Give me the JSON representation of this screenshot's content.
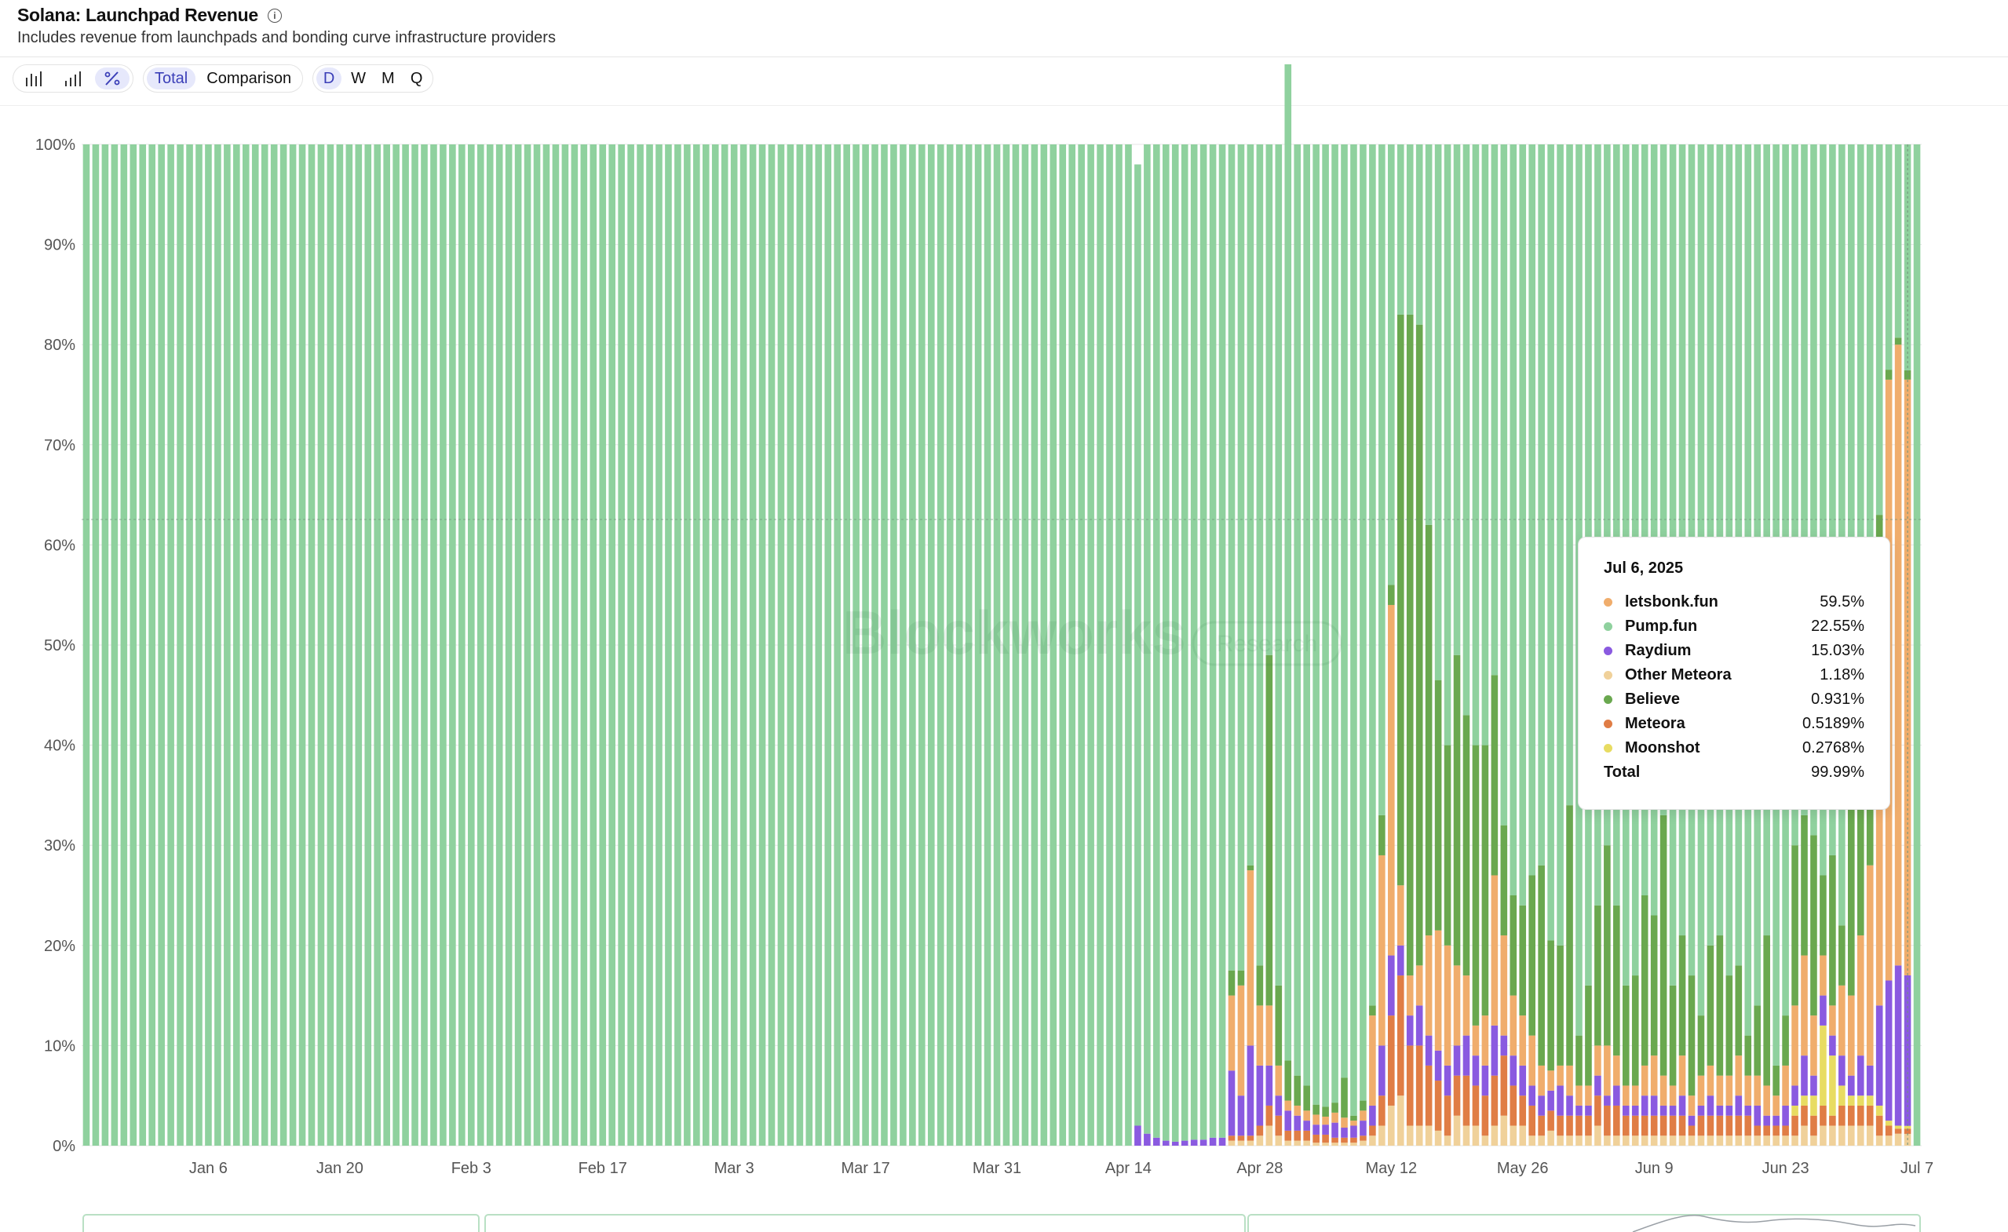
{
  "header": {
    "title": "Solana: Launchpad Revenue",
    "subtitle": "Includes revenue from launchpads and bonding curve infrastructure providers"
  },
  "toolbar": {
    "chart_types": [
      {
        "icon": "bar-chart-icon"
      },
      {
        "icon": "stacked-bar-chart-icon"
      },
      {
        "icon": "percent-icon"
      }
    ],
    "mode": {
      "total_label": "Total",
      "comparison_label": "Comparison",
      "active": "Total"
    },
    "intervals": [
      "D",
      "W",
      "M",
      "Q"
    ],
    "active_interval": "D"
  },
  "watermark": {
    "brand": "Blockworks",
    "tag": "Research"
  },
  "tooltip": {
    "date": "Jul 6, 2025",
    "rows": [
      {
        "name": "letsbonk.fun",
        "value": "59.5%",
        "color": "#f0ad6c"
      },
      {
        "name": "Pump.fun",
        "value": "22.55%",
        "color": "#8fd19e"
      },
      {
        "name": "Raydium",
        "value": "15.03%",
        "color": "#8a5ae0"
      },
      {
        "name": "Other Meteora",
        "value": "1.18%",
        "color": "#f0d19a"
      },
      {
        "name": "Believe",
        "value": "0.931%",
        "color": "#6aa84f"
      },
      {
        "name": "Meteora",
        "value": "0.5189%",
        "color": "#e07d45"
      },
      {
        "name": "Moonshot",
        "value": "0.2768%",
        "color": "#e8dc62"
      }
    ],
    "total_label": "Total",
    "total_value": "99.99%"
  },
  "chart_data": {
    "type": "bar",
    "stacked": true,
    "normalized_percent": true,
    "x_start_date": "2024-12-24",
    "num_days": 196,
    "x_ticks": [
      "Jan 6",
      "Jan 20",
      "Feb 3",
      "Feb 17",
      "Mar 3",
      "Mar 17",
      "Mar 31",
      "Apr 14",
      "Apr 28",
      "May 12",
      "May 26",
      "Jun 9",
      "Jun 23",
      "Jul 7"
    ],
    "y_ticks": [
      "0%",
      "10%",
      "20%",
      "30%",
      "40%",
      "50%",
      "60%",
      "70%",
      "80%",
      "90%",
      "100%"
    ],
    "ylim": [
      0,
      100
    ],
    "grid": true,
    "series_order": [
      "Other Meteora",
      "Meteora",
      "Moonshot",
      "Raydium",
      "letsbonk.fun",
      "Believe",
      "Pump.fun"
    ],
    "colors": {
      "Other Meteora": "#f0d19a",
      "Meteora": "#e07d45",
      "Moonshot": "#e8dc62",
      "Raydium": "#8a5ae0",
      "letsbonk.fun": "#f0ad6c",
      "Believe": "#6aa84f",
      "Pump.fun": "#8fd19e"
    },
    "days": [
      {
        "date": "2025-04-15",
        "Raydium": 2
      },
      {
        "date": "2025-04-16",
        "Raydium": 1.2
      },
      {
        "date": "2025-04-17",
        "Raydium": 0.8
      },
      {
        "date": "2025-04-18",
        "Raydium": 0.5
      },
      {
        "date": "2025-04-19",
        "Raydium": 0.4
      },
      {
        "date": "2025-04-20",
        "Raydium": 0.5
      },
      {
        "date": "2025-04-21",
        "Raydium": 0.6
      },
      {
        "date": "2025-04-22",
        "Raydium": 0.6
      },
      {
        "date": "2025-04-23",
        "Raydium": 0.8
      },
      {
        "date": "2025-04-24",
        "Raydium": 0.8
      },
      {
        "date": "2025-04-25",
        "Other Meteora": 0.5,
        "Meteora": 0.5,
        "Raydium": 6.5,
        "letsbonk.fun": 7.5,
        "Believe": 2.5
      },
      {
        "date": "2025-04-26",
        "Other Meteora": 0.5,
        "Meteora": 0.5,
        "Raydium": 4,
        "letsbonk.fun": 11,
        "Believe": 1.5
      },
      {
        "date": "2025-04-27",
        "Other Meteora": 0.5,
        "Meteora": 0.5,
        "Raydium": 9,
        "letsbonk.fun": 17.5,
        "Believe": 0.5
      },
      {
        "date": "2025-04-28",
        "Other Meteora": 1,
        "Meteora": 1,
        "Raydium": 6,
        "letsbonk.fun": 6,
        "Believe": 4
      },
      {
        "date": "2025-04-29",
        "Other Meteora": 2,
        "Meteora": 2,
        "Raydium": 4,
        "letsbonk.fun": 6,
        "Believe": 35
      },
      {
        "date": "2025-04-30",
        "Other Meteora": 1,
        "Meteora": 2,
        "Raydium": 2,
        "letsbonk.fun": 3,
        "Believe": 8
      },
      {
        "date": "2025-05-01",
        "Other Meteora": 0.5,
        "Meteora": 1,
        "Raydium": 2,
        "letsbonk.fun": 1,
        "Believe": 4
      },
      {
        "date": "2025-05-02",
        "Other Meteora": 0.5,
        "Meteora": 1,
        "Raydium": 1.5,
        "letsbonk.fun": 1,
        "Believe": 3
      },
      {
        "date": "2025-05-03",
        "Other Meteora": 0.5,
        "Meteora": 1,
        "Raydium": 1,
        "letsbonk.fun": 1,
        "Believe": 2.5
      },
      {
        "date": "2025-05-04",
        "Other Meteora": 0.3,
        "Meteora": 0.8,
        "Raydium": 1,
        "letsbonk.fun": 1,
        "Believe": 1
      },
      {
        "date": "2025-05-05",
        "Other Meteora": 0.3,
        "Meteora": 0.8,
        "Raydium": 1,
        "letsbonk.fun": 0.8,
        "Believe": 1
      },
      {
        "date": "2025-05-06",
        "Other Meteora": 0.3,
        "Meteora": 0.5,
        "Raydium": 1.5,
        "letsbonk.fun": 1,
        "Believe": 1
      },
      {
        "date": "2025-05-07",
        "Other Meteora": 0.3,
        "Meteora": 0.5,
        "Raydium": 1,
        "letsbonk.fun": 1,
        "Believe": 4
      },
      {
        "date": "2025-05-08",
        "Other Meteora": 0.3,
        "Meteora": 0.5,
        "Raydium": 1.2,
        "letsbonk.fun": 0.5,
        "Believe": 0.5
      },
      {
        "date": "2025-05-09",
        "Other Meteora": 0.5,
        "Meteora": 0.5,
        "Raydium": 1.5,
        "letsbonk.fun": 1,
        "Believe": 1
      },
      {
        "date": "2025-05-10",
        "Other Meteora": 1,
        "Meteora": 1,
        "Raydium": 2,
        "letsbonk.fun": 9,
        "Believe": 1
      },
      {
        "date": "2025-05-11",
        "Other Meteora": 2,
        "Meteora": 3,
        "Raydium": 5,
        "letsbonk.fun": 19,
        "Believe": 4
      },
      {
        "date": "2025-05-12",
        "Other Meteora": 4,
        "Meteora": 9,
        "Raydium": 6,
        "letsbonk.fun": 35,
        "Believe": 2
      },
      {
        "date": "2025-05-13",
        "Other Meteora": 5,
        "Meteora": 12,
        "Raydium": 3,
        "letsbonk.fun": 6,
        "Believe": 57
      },
      {
        "date": "2025-05-14",
        "Other Meteora": 2,
        "Meteora": 8,
        "Raydium": 3,
        "letsbonk.fun": 4,
        "Believe": 66
      },
      {
        "date": "2025-05-15",
        "Other Meteora": 2,
        "Meteora": 8,
        "Raydium": 4,
        "letsbonk.fun": 4,
        "Believe": 64
      },
      {
        "date": "2025-05-16",
        "Other Meteora": 2,
        "Meteora": 6,
        "Raydium": 3,
        "letsbonk.fun": 10,
        "Believe": 41
      },
      {
        "date": "2025-05-17",
        "Other Meteora": 1.5,
        "Meteora": 5,
        "Raydium": 3,
        "letsbonk.fun": 12,
        "Believe": 25
      },
      {
        "date": "2025-05-18",
        "Other Meteora": 1,
        "Meteora": 4,
        "Raydium": 3,
        "letsbonk.fun": 12,
        "Believe": 20
      },
      {
        "date": "2025-05-19",
        "Other Meteora": 3,
        "Meteora": 4,
        "Raydium": 3,
        "letsbonk.fun": 8,
        "Believe": 31
      },
      {
        "date": "2025-05-20",
        "Other Meteora": 2,
        "Meteora": 5,
        "Raydium": 4,
        "letsbonk.fun": 6,
        "Believe": 26
      },
      {
        "date": "2025-05-21",
        "Other Meteora": 2,
        "Meteora": 4,
        "Raydium": 3,
        "letsbonk.fun": 3,
        "Believe": 28
      },
      {
        "date": "2025-05-22",
        "Other Meteora": 1,
        "Meteora": 4,
        "Raydium": 3,
        "letsbonk.fun": 5,
        "Believe": 27
      },
      {
        "date": "2025-05-23",
        "Other Meteora": 2,
        "Meteora": 5,
        "Raydium": 5,
        "letsbonk.fun": 15,
        "Believe": 20
      },
      {
        "date": "2025-05-24",
        "Other Meteora": 3,
        "Meteora": 6,
        "Raydium": 2,
        "letsbonk.fun": 10,
        "Believe": 11
      },
      {
        "date": "2025-05-25",
        "Other Meteora": 2,
        "Meteora": 4,
        "Raydium": 3,
        "letsbonk.fun": 6,
        "Believe": 10
      },
      {
        "date": "2025-05-26",
        "Other Meteora": 2,
        "Meteora": 3,
        "Raydium": 3,
        "letsbonk.fun": 5,
        "Believe": 11
      },
      {
        "date": "2025-05-27",
        "Other Meteora": 1,
        "Meteora": 3,
        "Raydium": 2,
        "letsbonk.fun": 5,
        "Believe": 16
      },
      {
        "date": "2025-05-28",
        "Other Meteora": 1,
        "Meteora": 2,
        "Raydium": 2,
        "letsbonk.fun": 3,
        "Believe": 20
      },
      {
        "date": "2025-05-29",
        "Other Meteora": 1.5,
        "Meteora": 2,
        "Raydium": 2,
        "letsbonk.fun": 2,
        "Believe": 13
      },
      {
        "date": "2025-05-30",
        "Other Meteora": 1,
        "Meteora": 2,
        "Raydium": 3,
        "letsbonk.fun": 2,
        "Believe": 12
      },
      {
        "date": "2025-05-31",
        "Other Meteora": 1,
        "Meteora": 2,
        "Raydium": 2,
        "letsbonk.fun": 3,
        "Believe": 26
      },
      {
        "date": "2025-06-01",
        "Other Meteora": 1,
        "Meteora": 2,
        "Raydium": 1,
        "letsbonk.fun": 2,
        "Believe": 5
      },
      {
        "date": "2025-06-02",
        "Other Meteora": 1,
        "Meteora": 2,
        "Raydium": 1,
        "letsbonk.fun": 2,
        "Believe": 10
      },
      {
        "date": "2025-06-03",
        "Other Meteora": 2,
        "Meteora": 3,
        "Raydium": 2,
        "letsbonk.fun": 3,
        "Believe": 14
      },
      {
        "date": "2025-06-04",
        "Other Meteora": 1,
        "Meteora": 3,
        "Raydium": 1,
        "letsbonk.fun": 5,
        "Believe": 20
      },
      {
        "date": "2025-06-05",
        "Other Meteora": 1,
        "Meteora": 3,
        "Raydium": 2,
        "letsbonk.fun": 3,
        "Believe": 15
      },
      {
        "date": "2025-06-06",
        "Other Meteora": 1,
        "Meteora": 2,
        "Raydium": 1,
        "letsbonk.fun": 2,
        "Believe": 10
      },
      {
        "date": "2025-06-07",
        "Other Meteora": 1,
        "Meteora": 2,
        "Raydium": 1,
        "letsbonk.fun": 2,
        "Believe": 11
      },
      {
        "date": "2025-06-08",
        "Other Meteora": 1,
        "Meteora": 2,
        "Raydium": 2,
        "letsbonk.fun": 3,
        "Believe": 17
      },
      {
        "date": "2025-06-09",
        "Other Meteora": 1,
        "Meteora": 2,
        "Raydium": 2,
        "letsbonk.fun": 4,
        "Believe": 14
      },
      {
        "date": "2025-06-10",
        "Other Meteora": 1,
        "Meteora": 2,
        "Raydium": 1,
        "letsbonk.fun": 3,
        "Believe": 26
      },
      {
        "date": "2025-06-11",
        "Other Meteora": 1,
        "Meteora": 2,
        "Raydium": 1,
        "letsbonk.fun": 2,
        "Believe": 10
      },
      {
        "date": "2025-06-12",
        "Other Meteora": 1,
        "Meteora": 2,
        "Raydium": 2,
        "letsbonk.fun": 4,
        "Believe": 12
      },
      {
        "date": "2025-06-13",
        "Other Meteora": 1,
        "Meteora": 1,
        "Raydium": 1,
        "letsbonk.fun": 2,
        "Believe": 12
      },
      {
        "date": "2025-06-14",
        "Other Meteora": 1,
        "Meteora": 2,
        "Raydium": 1,
        "letsbonk.fun": 3,
        "Believe": 6
      },
      {
        "date": "2025-06-15",
        "Other Meteora": 1,
        "Meteora": 2,
        "Raydium": 2,
        "letsbonk.fun": 3,
        "Believe": 12
      },
      {
        "date": "2025-06-16",
        "Other Meteora": 1,
        "Meteora": 2,
        "Raydium": 1,
        "letsbonk.fun": 3,
        "Believe": 14
      },
      {
        "date": "2025-06-17",
        "Other Meteora": 1,
        "Meteora": 2,
        "Raydium": 1,
        "letsbonk.fun": 3,
        "Believe": 10
      },
      {
        "date": "2025-06-18",
        "Other Meteora": 1,
        "Meteora": 2,
        "Raydium": 2,
        "letsbonk.fun": 4,
        "Believe": 9
      },
      {
        "date": "2025-06-19",
        "Other Meteora": 1,
        "Meteora": 2,
        "Raydium": 1,
        "letsbonk.fun": 3,
        "Believe": 4
      },
      {
        "date": "2025-06-20",
        "Other Meteora": 1,
        "Meteora": 1,
        "Raydium": 2,
        "letsbonk.fun": 3,
        "Believe": 7
      },
      {
        "date": "2025-06-21",
        "Other Meteora": 1,
        "Meteora": 1,
        "Raydium": 1,
        "letsbonk.fun": 3,
        "Believe": 15
      },
      {
        "date": "2025-06-22",
        "Other Meteora": 1,
        "Meteora": 1,
        "Raydium": 1,
        "letsbonk.fun": 2,
        "Believe": 3
      },
      {
        "date": "2025-06-23",
        "Other Meteora": 1,
        "Meteora": 1,
        "Raydium": 2,
        "letsbonk.fun": 4,
        "Believe": 5
      },
      {
        "date": "2025-06-24",
        "Other Meteora": 1,
        "Meteora": 2,
        "Moonshot": 1,
        "Raydium": 2,
        "letsbonk.fun": 8,
        "Believe": 16
      },
      {
        "date": "2025-06-25",
        "Other Meteora": 2,
        "Meteora": 2,
        "Moonshot": 1,
        "Raydium": 4,
        "letsbonk.fun": 10,
        "Believe": 14
      },
      {
        "date": "2025-06-26",
        "Other Meteora": 1,
        "Meteora": 2,
        "Moonshot": 2,
        "Raydium": 2,
        "letsbonk.fun": 6,
        "Believe": 18
      },
      {
        "date": "2025-06-27",
        "Other Meteora": 2,
        "Meteora": 2,
        "Moonshot": 8,
        "Raydium": 3,
        "letsbonk.fun": 4,
        "Believe": 8
      },
      {
        "date": "2025-06-28",
        "Other Meteora": 2,
        "Meteora": 1,
        "Moonshot": 6,
        "Raydium": 2,
        "letsbonk.fun": 3,
        "Believe": 15
      },
      {
        "date": "2025-06-29",
        "Other Meteora": 2,
        "Meteora": 2,
        "Moonshot": 2,
        "Raydium": 3,
        "letsbonk.fun": 7,
        "Believe": 6
      },
      {
        "date": "2025-06-30",
        "Other Meteora": 2,
        "Meteora": 2,
        "Moonshot": 1,
        "Raydium": 2,
        "letsbonk.fun": 8,
        "Believe": 20
      },
      {
        "date": "2025-07-01",
        "Other Meteora": 2,
        "Meteora": 2,
        "Moonshot": 1,
        "Raydium": 4,
        "letsbonk.fun": 12,
        "Believe": 14
      },
      {
        "date": "2025-07-02",
        "Other Meteora": 2,
        "Meteora": 2,
        "Moonshot": 1,
        "Raydium": 3,
        "letsbonk.fun": 20,
        "Believe": 8
      },
      {
        "date": "2025-07-03",
        "Other Meteora": 1,
        "Meteora": 2,
        "Moonshot": 1,
        "Raydium": 10,
        "letsbonk.fun": 25,
        "Believe": 24
      },
      {
        "date": "2025-07-04",
        "Other Meteora": 1,
        "Meteora": 1,
        "Moonshot": 0.5,
        "Raydium": 14,
        "letsbonk.fun": 60,
        "Believe": 1
      },
      {
        "date": "2025-07-05",
        "Other Meteora": 1.2,
        "Meteora": 0.5,
        "Moonshot": 0.3,
        "Raydium": 16,
        "letsbonk.fun": 62,
        "Believe": 0.7
      },
      {
        "date": "2025-07-06",
        "Other Meteora": 1.18,
        "Meteora": 0.52,
        "Moonshot": 0.28,
        "Raydium": 15.03,
        "letsbonk.fun": 59.5,
        "Believe": 0.93,
        "Pump.fun": 22.55
      }
    ],
    "partial_total_days": [
      {
        "date": "2025-04-15",
        "Pump.fun": 96
      },
      {
        "date": "2025-04-16",
        "Pump.fun": 98.8
      },
      {
        "date": "2025-05-01",
        "Pump.fun": 99.5
      }
    ],
    "hover_date": "2025-07-06"
  }
}
